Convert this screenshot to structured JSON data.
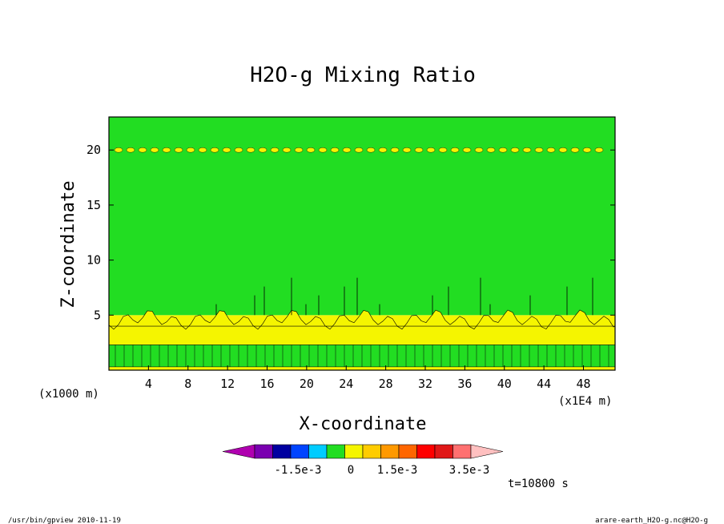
{
  "chart_data": {
    "type": "heatmap",
    "title": "H2O-g Mixing Ratio",
    "xlabel": "X-coordinate",
    "ylabel": "Z-coordinate",
    "x_units_left": "(x1000 m)",
    "x_units_right": "(x1E4 m)",
    "x_ticks": [
      "4",
      "8",
      "12",
      "16",
      "20",
      "24",
      "28",
      "32",
      "36",
      "40",
      "44",
      "48"
    ],
    "y_ticks": [
      "5",
      "10",
      "15",
      "20"
    ],
    "ylim": [
      0,
      23
    ],
    "regions": [
      {
        "z_range": [
          0,
          0.3
        ],
        "color_band": "0 to 5e-4",
        "color": "#f5f500"
      },
      {
        "z_range": [
          0.3,
          2.3
        ],
        "color_band": "-5e-4 to 0",
        "color": "#22dd22"
      },
      {
        "z_range": [
          2.3,
          5.0
        ],
        "color_band": "0 to 5e-4",
        "color": "#f5f500"
      },
      {
        "z_range": [
          5.0,
          23.0
        ],
        "color_band": "-5e-4 to 0",
        "color": "#22dd22"
      },
      {
        "z_range": [
          19.8,
          20.2
        ],
        "color_band": "0 to 5e-4 (patches)",
        "color": "#f5f500"
      }
    ],
    "colorbar": {
      "colors": [
        "#b000b0",
        "#7a00b0",
        "#0000a0",
        "#0044ff",
        "#00ccff",
        "#22dd22",
        "#f5f500",
        "#ffcc00",
        "#ff9900",
        "#ff6600",
        "#ff0000",
        "#e01818",
        "#ff7070",
        "#ffc0c0"
      ],
      "labels": [
        "-1.5e-3",
        "0",
        "1.5e-3",
        "3.5e-3"
      ]
    },
    "time_label": "t=10800 s"
  },
  "footer": {
    "left": "/usr/bin/gpview   2010-11-19",
    "right": "arare-earth_H2O-g.nc@H2O-g"
  }
}
